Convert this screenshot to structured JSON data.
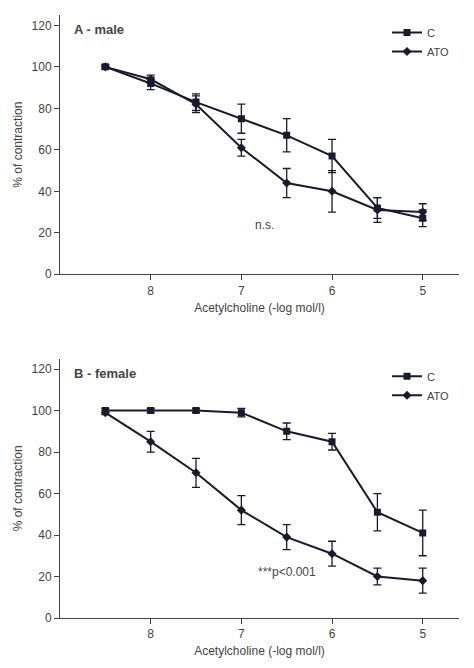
{
  "chart_data": [
    {
      "type": "line",
      "title": "A - male",
      "x": [
        8.5,
        8,
        7.5,
        7,
        6.5,
        6,
        5.5,
        5
      ],
      "xlabel": "Acetylcholine (-log mol/l)",
      "ylabel": "% of contraction",
      "xlim": [
        9.0,
        4.6
      ],
      "xticks": [
        8,
        7,
        6,
        5
      ],
      "ylim": [
        0,
        125
      ],
      "yticks": [
        0,
        20,
        40,
        60,
        80,
        100,
        120
      ],
      "grid": false,
      "legend": "upper right",
      "series": [
        {
          "name": "C",
          "color": "#1a1a2e",
          "marker": "square",
          "line_style": "solid",
          "values": [
            100,
            92,
            83,
            75,
            67,
            57,
            32,
            27
          ],
          "errors": [
            1,
            3,
            4,
            7,
            8,
            8,
            5,
            4
          ]
        },
        {
          "name": "ATO",
          "color": "#1a1a2e",
          "marker": "diamond",
          "line_style": "solid",
          "values": [
            100,
            94,
            82,
            61,
            44,
            40,
            31,
            30
          ],
          "errors": [
            1,
            2,
            4,
            4,
            7,
            10,
            6,
            4
          ]
        }
      ],
      "annotations": [
        {
          "text": "n.s.",
          "x": 6.75,
          "y": 24
        }
      ]
    },
    {
      "type": "line",
      "title": "B - female",
      "x": [
        8.5,
        8,
        7.5,
        7,
        6.5,
        6,
        5.5,
        5
      ],
      "xlabel": "Acetylcholine (-log mol/l)",
      "ylabel": "% of contraction",
      "xlim": [
        9.0,
        4.6
      ],
      "xticks": [
        8,
        7,
        6,
        5
      ],
      "ylim": [
        0,
        125
      ],
      "yticks": [
        0,
        20,
        40,
        60,
        80,
        100,
        120
      ],
      "grid": false,
      "legend": "upper right",
      "series": [
        {
          "name": "C",
          "color": "#1a1a2e",
          "marker": "square",
          "line_style": "solid",
          "values": [
            100,
            100,
            100,
            99,
            90,
            85,
            51,
            41
          ],
          "errors": [
            1,
            1,
            1,
            2,
            4,
            4,
            9,
            11
          ]
        },
        {
          "name": "ATO",
          "color": "#1a1a2e",
          "marker": "diamond",
          "line_style": "solid",
          "values": [
            99,
            85,
            70,
            52,
            39,
            31,
            20,
            18
          ],
          "errors": [
            1,
            5,
            7,
            7,
            6,
            6,
            4,
            6
          ]
        }
      ],
      "annotations": [
        {
          "text": "***p<0.001",
          "x": 6.5,
          "y": 22
        }
      ]
    }
  ]
}
